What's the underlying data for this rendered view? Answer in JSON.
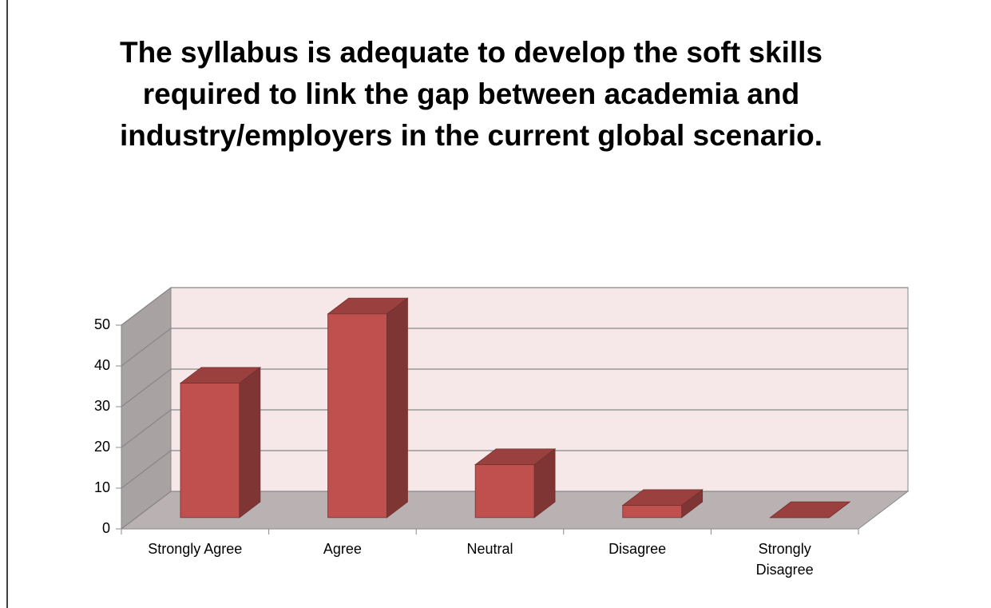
{
  "chart_data": {
    "type": "bar3d",
    "title": "The syllabus is adequate to develop the soft skills required to link the gap between academia and industry/employers in the current global scenario.",
    "categories": [
      "Strongly Agree",
      "Agree",
      "Neutral",
      "Disagree",
      "Strongly Disagree"
    ],
    "values": [
      33,
      50,
      13,
      3,
      0
    ],
    "color": "#c0504d",
    "ylim": [
      0,
      50
    ],
    "yticks": [
      0,
      10,
      20,
      30,
      40,
      50
    ],
    "grid": true
  }
}
